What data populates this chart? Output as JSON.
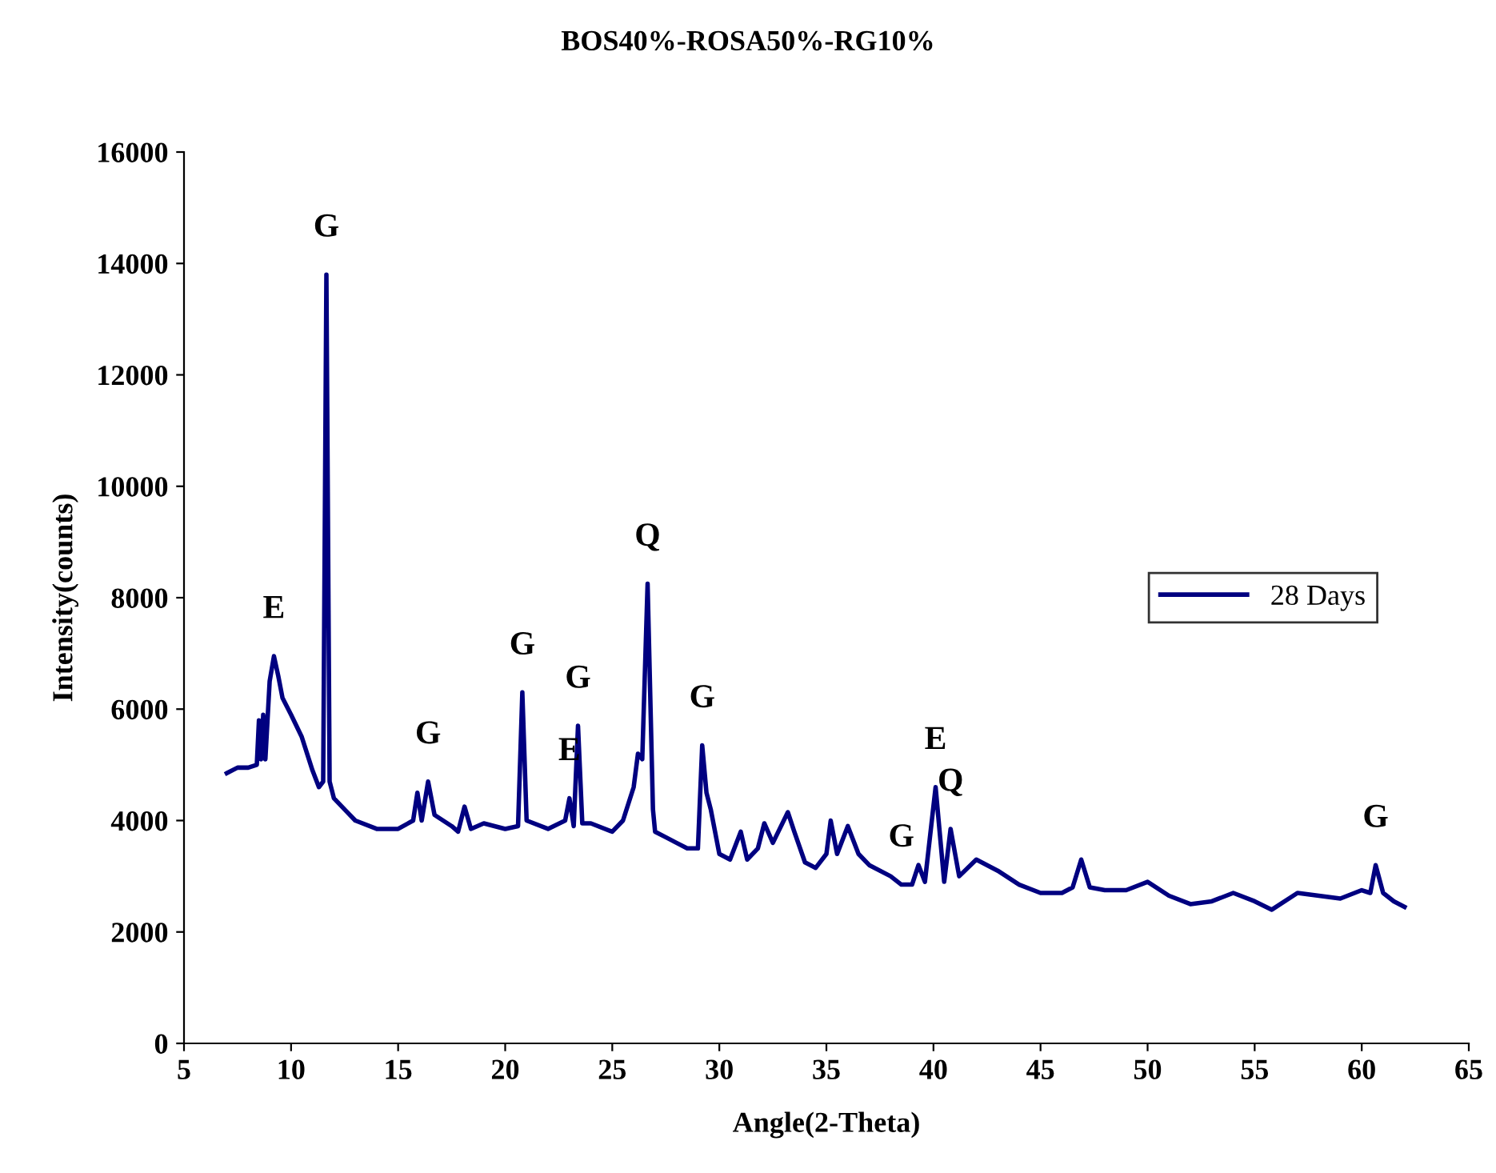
{
  "chart_data": {
    "type": "line",
    "title": "BOS40%-ROSA50%-RG10%",
    "xlabel": "Angle(2-Theta)",
    "ylabel": "Intensity(counts)",
    "xlim": [
      5,
      65
    ],
    "xticks": [
      5,
      10,
      15,
      20,
      25,
      30,
      35,
      40,
      45,
      50,
      55,
      60,
      65
    ],
    "ylim": [
      0,
      16000
    ],
    "yticks": [
      0,
      2000,
      4000,
      6000,
      8000,
      10000,
      12000,
      14000,
      16000
    ],
    "grid": false,
    "legend": "right",
    "marker": "none",
    "line_style": "solid",
    "series": [
      {
        "name": "28 Days",
        "color": "#000080",
        "x": [
          7.0,
          7.5,
          8.0,
          8.4,
          8.5,
          8.6,
          8.7,
          8.8,
          9.0,
          9.2,
          9.4,
          9.6,
          10.0,
          10.5,
          11.0,
          11.3,
          11.5,
          11.65,
          11.8,
          12.0,
          12.5,
          13,
          14,
          15,
          15.7,
          15.9,
          16.1,
          16.4,
          16.7,
          17.5,
          17.8,
          18.1,
          18.4,
          19,
          20,
          20.6,
          20.8,
          21.0,
          22,
          22.8,
          23.0,
          23.2,
          23.4,
          23.6,
          24,
          25,
          25.5,
          26,
          26.2,
          26.4,
          26.65,
          26.9,
          27,
          27.5,
          28,
          28.5,
          29.0,
          29.2,
          29.4,
          29.6,
          30,
          30.5,
          31.0,
          31.3,
          31.8,
          32.1,
          32.5,
          33.2,
          33.5,
          34,
          34.5,
          35.0,
          35.2,
          35.5,
          36.0,
          36.5,
          37,
          38,
          38.5,
          39,
          39.3,
          39.6,
          40.1,
          40.5,
          40.8,
          41.2,
          42,
          43,
          44,
          45,
          46,
          46.5,
          46.9,
          47.3,
          48,
          49,
          50,
          51,
          52,
          53,
          54,
          55,
          55.8,
          57,
          58,
          59,
          60,
          60.4,
          60.65,
          61,
          61.5,
          62
        ],
        "values": [
          4850,
          4950,
          4950,
          5000,
          5800,
          5100,
          5900,
          5100,
          6500,
          6950,
          6600,
          6200,
          5900,
          5500,
          4900,
          4600,
          4700,
          13800,
          4700,
          4400,
          4200,
          4000,
          3850,
          3850,
          4000,
          4500,
          4000,
          4700,
          4100,
          3900,
          3800,
          4250,
          3850,
          3950,
          3850,
          3900,
          6300,
          4000,
          3850,
          4000,
          4400,
          3900,
          5700,
          3950,
          3950,
          3800,
          4000,
          4600,
          5200,
          5100,
          8250,
          4200,
          3800,
          3700,
          3600,
          3500,
          3500,
          5350,
          4500,
          4200,
          3400,
          3300,
          3800,
          3300,
          3500,
          3950,
          3600,
          4150,
          3800,
          3250,
          3150,
          3400,
          4000,
          3400,
          3900,
          3400,
          3200,
          3000,
          2850,
          2850,
          3200,
          2900,
          4600,
          2900,
          3850,
          3000,
          3300,
          3100,
          2850,
          2700,
          2700,
          2800,
          3300,
          2800,
          2750,
          2750,
          2900,
          2650,
          2500,
          2550,
          2700,
          2550,
          2400,
          2700,
          2650,
          2600,
          2750,
          2700,
          3200,
          2700,
          2550,
          2450
        ]
      }
    ],
    "annotations": [
      {
        "text": "E",
        "x": 9.2,
        "y": 6950
      },
      {
        "text": "G",
        "x": 11.65,
        "y": 13800
      },
      {
        "text": "G",
        "x": 16.4,
        "y": 4700
      },
      {
        "text": "G",
        "x": 20.8,
        "y": 6300
      },
      {
        "text": "E",
        "x": 23.0,
        "y": 4400
      },
      {
        "text": "G",
        "x": 23.4,
        "y": 5700
      },
      {
        "text": "Q",
        "x": 26.65,
        "y": 8250
      },
      {
        "text": "G",
        "x": 29.2,
        "y": 5350
      },
      {
        "text": "G",
        "x": 38.5,
        "y": 2850
      },
      {
        "text": "E",
        "x": 40.1,
        "y": 4600
      },
      {
        "text": "Q",
        "x": 40.8,
        "y": 3850
      },
      {
        "text": "G",
        "x": 60.65,
        "y": 3200
      }
    ]
  }
}
